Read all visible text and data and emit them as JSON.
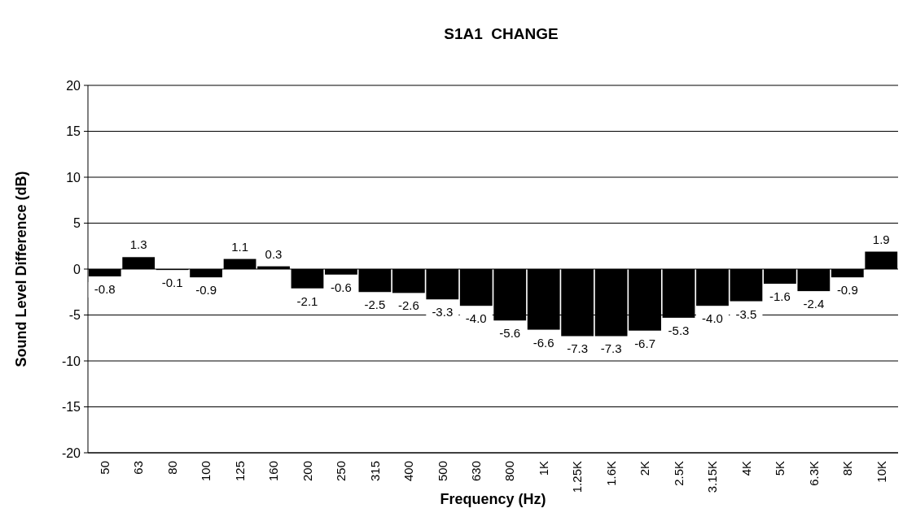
{
  "chart_data": {
    "type": "bar",
    "title": "S1A1  CHANGE",
    "xlabel": "Frequency (Hz)",
    "ylabel": "Sound Level Difference (dB)",
    "categories": [
      "50",
      "63",
      "80",
      "100",
      "125",
      "160",
      "200",
      "250",
      "315",
      "400",
      "500",
      "630",
      "800",
      "1K",
      "1.25K",
      "1.6K",
      "2K",
      "2.5K",
      "3.15K",
      "4K",
      "5K",
      "6.3K",
      "8K",
      "10K"
    ],
    "values": [
      -0.8,
      1.3,
      -0.1,
      -0.9,
      1.1,
      0.3,
      -2.1,
      -0.6,
      -2.5,
      -2.6,
      -3.3,
      -4.0,
      -5.6,
      -6.6,
      -7.3,
      -7.3,
      -6.7,
      -5.3,
      -4.0,
      -3.5,
      -1.6,
      -2.4,
      -0.9,
      1.9
    ],
    "value_labels": [
      "-0.8",
      "1.3",
      "-0.1",
      "-0.9",
      "1.1",
      "0.3",
      "-2.1",
      "-0.6",
      "-2.5",
      "-2.6",
      "-3.3",
      "-4.0",
      "-5.6",
      "-6.6",
      "-7.3",
      "-7.3",
      "-6.7",
      "-5.3",
      "-4.0",
      "-3.5",
      "-1.6",
      "-2.4",
      "-0.9",
      "1.9"
    ],
    "color": "#000000",
    "ylim": [
      -20,
      20
    ],
    "yticks": [
      -20,
      -15,
      -10,
      -5,
      0,
      5,
      10,
      15,
      20
    ],
    "grid": "y"
  }
}
